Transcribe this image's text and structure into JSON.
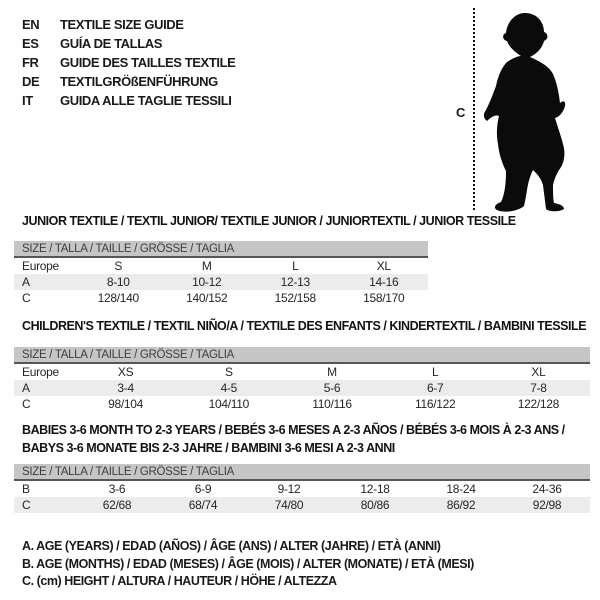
{
  "languages": [
    {
      "code": "EN",
      "title": "TEXTILE SIZE GUIDE"
    },
    {
      "code": "ES",
      "title": "GUÍA DE TALLAS"
    },
    {
      "code": "FR",
      "title": "GUIDE DES TAILLES TEXTILE"
    },
    {
      "code": "DE",
      "title": "TEXTILGRÖßENFÜHRUNG"
    },
    {
      "code": "IT",
      "title": "GUIDA ALLE TAGLIE TESSILI"
    }
  ],
  "figure": {
    "label": "C"
  },
  "size_header": "SIZE / TALLA / TAILLE / GRÖSSE / TAGLIA",
  "tables": [
    {
      "title": "JUNIOR TEXTILE / TEXTIL JUNIOR/ TEXTILE JUNIOR / JUNIORTEXTIL / JUNIOR TESSILE",
      "rows": [
        {
          "label": "Europe",
          "values": [
            "S",
            "M",
            "L",
            "XL"
          ],
          "shaded": false
        },
        {
          "label": "A",
          "values": [
            "8-10",
            "10-12",
            "12-13",
            "14-16"
          ],
          "shaded": true
        },
        {
          "label": "C",
          "values": [
            "128/140",
            "140/152",
            "152/158",
            "158/170"
          ],
          "shaded": false
        }
      ]
    },
    {
      "title": "CHILDREN'S TEXTILE / TEXTIL NIÑO/A / TEXTILE DES ENFANTS / KINDERTEXTIL / BAMBINI TESSILE",
      "rows": [
        {
          "label": "Europe",
          "values": [
            "XS",
            "S",
            "M",
            "L",
            "XL"
          ],
          "shaded": false
        },
        {
          "label": "A",
          "values": [
            "3-4",
            "4-5",
            "5-6",
            "6-7",
            "7-8"
          ],
          "shaded": true
        },
        {
          "label": "C",
          "values": [
            "98/104",
            "104/110",
            "110/116",
            "116/122",
            "122/128"
          ],
          "shaded": false
        }
      ]
    },
    {
      "title": "BABIES 3-6 MONTH TO 2-3 YEARS / BEBÉS 3-6 MESES A 2-3 AÑOS / BÉBÉS 3-6 MOIS À 2-3 ANS / BABYS 3-6 MONATE BIS 2-3 JAHRE / BAMBINI 3-6 MESI A 2-3 ANNI",
      "rows": [
        {
          "label": "B",
          "values": [
            "3-6",
            "6-9",
            "9-12",
            "12-18",
            "18-24",
            "24-36"
          ],
          "shaded": false
        },
        {
          "label": "C",
          "values": [
            "62/68",
            "68/74",
            "74/80",
            "80/86",
            "86/92",
            "92/98"
          ],
          "shaded": true
        }
      ]
    }
  ],
  "legend": [
    "A. AGE (YEARS) / EDAD (AÑOS) / ÂGE (ANS) / ALTER (JAHRE) / ETÀ (ANNI)",
    "B. AGE (MONTHS) / EDAD (MESES) / ÂGE (MOIS) / ALTER (MONATE) / ETÀ (MESI)",
    "C. (cm) HEIGHT / ALTURA / HAUTEUR / HÖHE / ALTEZZA"
  ],
  "colors": {
    "background": "#ffffff",
    "text": "#1a1a1a",
    "header_bar": "#c6c6c6",
    "header_bar_underline": "#565656",
    "shaded_row": "#ececec",
    "silhouette": "#0b0b0b"
  }
}
